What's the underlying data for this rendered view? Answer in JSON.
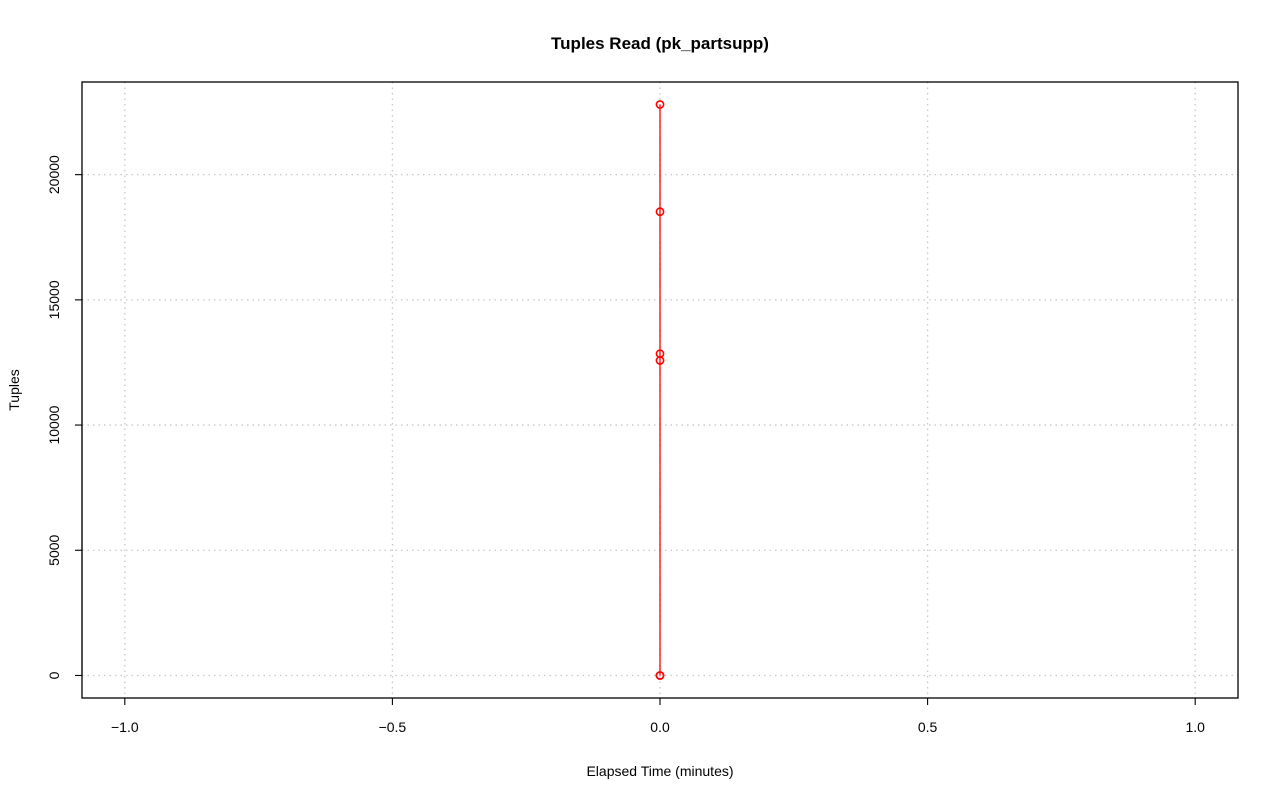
{
  "chart_data": {
    "type": "line",
    "title": "Tuples Read (pk_partsupp)",
    "xlabel": "Elapsed Time (minutes)",
    "ylabel": "Tuples",
    "xlim": [
      -1.08,
      1.08
    ],
    "ylim": [
      -900,
      23700
    ],
    "x_ticks": [
      -1.0,
      -0.5,
      0.0,
      0.5,
      1.0
    ],
    "x_tick_labels": [
      "−1.0",
      "−0.5",
      "0.0",
      "0.5",
      "1.0"
    ],
    "y_ticks": [
      0,
      5000,
      10000,
      15000,
      20000
    ],
    "y_tick_labels": [
      "0",
      "5000",
      "10000",
      "15000",
      "20000"
    ],
    "grid": true,
    "series": [
      {
        "color": "#ff0000",
        "line_style": "dashed",
        "marker": "open-circle",
        "x": [
          0,
          0,
          0,
          0,
          0,
          0
        ],
        "y": [
          0,
          12580,
          12850,
          18520,
          22800,
          0
        ]
      }
    ]
  }
}
